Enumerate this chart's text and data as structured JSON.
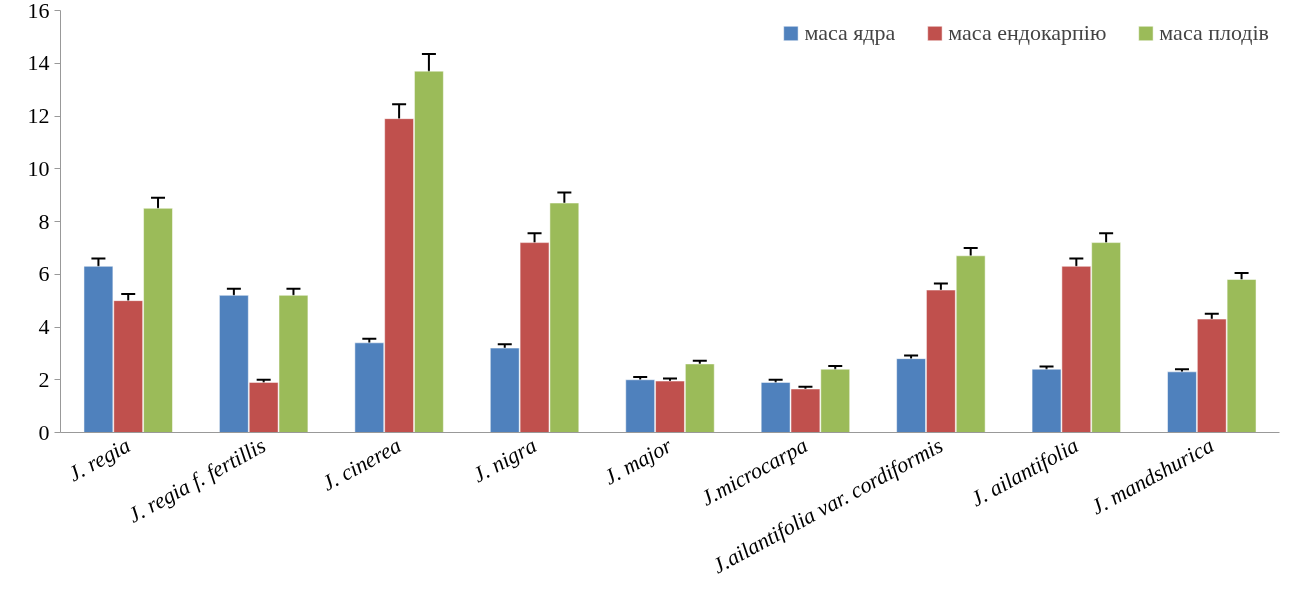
{
  "chart_data": {
    "type": "bar",
    "categories": [
      "J. regia",
      "J. regia f. fertillis",
      "J. cinerea",
      "J. nigra",
      "J. major",
      "J.microcarpa",
      "J.ailantifolia var. cordiformis",
      "J. ailantifolia",
      "J. mandshurica"
    ],
    "series": [
      {
        "name": "маса ядра",
        "color": "#4f81bd",
        "values": [
          6.3,
          5.2,
          3.4,
          3.2,
          2.0,
          1.9,
          2.8,
          2.4,
          2.3
        ],
        "errors": [
          0.3,
          0.25,
          0.15,
          0.15,
          0.1,
          0.1,
          0.12,
          0.1,
          0.1
        ]
      },
      {
        "name": "маса ендокарпію",
        "color": "#c0504d",
        "values": [
          5.0,
          1.9,
          11.9,
          7.2,
          1.95,
          1.65,
          5.4,
          6.3,
          4.3
        ],
        "errors": [
          0.25,
          0.1,
          0.55,
          0.35,
          0.1,
          0.08,
          0.25,
          0.3,
          0.2
        ]
      },
      {
        "name": "маса плодів",
        "color": "#9bbb59",
        "values": [
          8.5,
          5.2,
          13.7,
          8.7,
          2.6,
          2.4,
          6.7,
          7.2,
          5.8
        ],
        "errors": [
          0.4,
          0.25,
          0.65,
          0.4,
          0.12,
          0.12,
          0.3,
          0.35,
          0.25
        ]
      }
    ],
    "ylim": [
      0,
      16
    ],
    "yticks": [
      0,
      2,
      4,
      6,
      8,
      10,
      12,
      14,
      16
    ],
    "grid": false,
    "legend": "top right"
  }
}
